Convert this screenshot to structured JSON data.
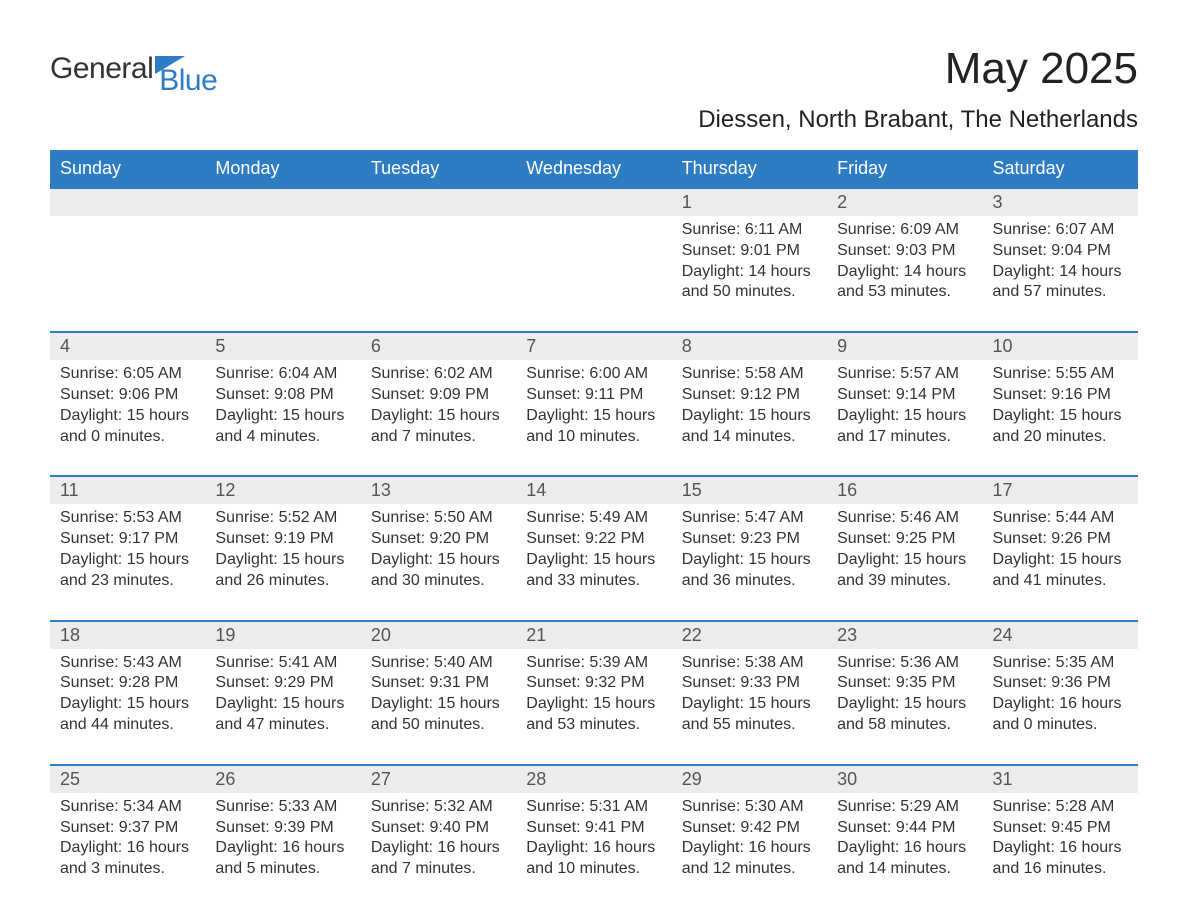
{
  "colors": {
    "header_bg": "#2e7cc2",
    "header_text": "#ffffff",
    "daynum_bg": "#ececec",
    "daynum_text": "#555555",
    "body_text": "#333333",
    "row_divider": "#2e7cc2",
    "background": "#ffffff"
  },
  "fonts": {
    "title_size_pt": 33,
    "subtitle_size_pt": 18,
    "weekday_size_pt": 14,
    "daynum_size_pt": 14,
    "cell_size_pt": 12
  },
  "logo": {
    "text1": "General",
    "text2": "Blue"
  },
  "title": "May 2025",
  "subtitle": "Diessen, North Brabant, The Netherlands",
  "weekdays": [
    "Sunday",
    "Monday",
    "Tuesday",
    "Wednesday",
    "Thursday",
    "Friday",
    "Saturday"
  ],
  "weeks": [
    [
      null,
      null,
      null,
      null,
      {
        "n": "1",
        "sr": "Sunrise: 6:11 AM",
        "ss": "Sunset: 9:01 PM",
        "d1": "Daylight: 14 hours",
        "d2": "and 50 minutes."
      },
      {
        "n": "2",
        "sr": "Sunrise: 6:09 AM",
        "ss": "Sunset: 9:03 PM",
        "d1": "Daylight: 14 hours",
        "d2": "and 53 minutes."
      },
      {
        "n": "3",
        "sr": "Sunrise: 6:07 AM",
        "ss": "Sunset: 9:04 PM",
        "d1": "Daylight: 14 hours",
        "d2": "and 57 minutes."
      }
    ],
    [
      {
        "n": "4",
        "sr": "Sunrise: 6:05 AM",
        "ss": "Sunset: 9:06 PM",
        "d1": "Daylight: 15 hours",
        "d2": "and 0 minutes."
      },
      {
        "n": "5",
        "sr": "Sunrise: 6:04 AM",
        "ss": "Sunset: 9:08 PM",
        "d1": "Daylight: 15 hours",
        "d2": "and 4 minutes."
      },
      {
        "n": "6",
        "sr": "Sunrise: 6:02 AM",
        "ss": "Sunset: 9:09 PM",
        "d1": "Daylight: 15 hours",
        "d2": "and 7 minutes."
      },
      {
        "n": "7",
        "sr": "Sunrise: 6:00 AM",
        "ss": "Sunset: 9:11 PM",
        "d1": "Daylight: 15 hours",
        "d2": "and 10 minutes."
      },
      {
        "n": "8",
        "sr": "Sunrise: 5:58 AM",
        "ss": "Sunset: 9:12 PM",
        "d1": "Daylight: 15 hours",
        "d2": "and 14 minutes."
      },
      {
        "n": "9",
        "sr": "Sunrise: 5:57 AM",
        "ss": "Sunset: 9:14 PM",
        "d1": "Daylight: 15 hours",
        "d2": "and 17 minutes."
      },
      {
        "n": "10",
        "sr": "Sunrise: 5:55 AM",
        "ss": "Sunset: 9:16 PM",
        "d1": "Daylight: 15 hours",
        "d2": "and 20 minutes."
      }
    ],
    [
      {
        "n": "11",
        "sr": "Sunrise: 5:53 AM",
        "ss": "Sunset: 9:17 PM",
        "d1": "Daylight: 15 hours",
        "d2": "and 23 minutes."
      },
      {
        "n": "12",
        "sr": "Sunrise: 5:52 AM",
        "ss": "Sunset: 9:19 PM",
        "d1": "Daylight: 15 hours",
        "d2": "and 26 minutes."
      },
      {
        "n": "13",
        "sr": "Sunrise: 5:50 AM",
        "ss": "Sunset: 9:20 PM",
        "d1": "Daylight: 15 hours",
        "d2": "and 30 minutes."
      },
      {
        "n": "14",
        "sr": "Sunrise: 5:49 AM",
        "ss": "Sunset: 9:22 PM",
        "d1": "Daylight: 15 hours",
        "d2": "and 33 minutes."
      },
      {
        "n": "15",
        "sr": "Sunrise: 5:47 AM",
        "ss": "Sunset: 9:23 PM",
        "d1": "Daylight: 15 hours",
        "d2": "and 36 minutes."
      },
      {
        "n": "16",
        "sr": "Sunrise: 5:46 AM",
        "ss": "Sunset: 9:25 PM",
        "d1": "Daylight: 15 hours",
        "d2": "and 39 minutes."
      },
      {
        "n": "17",
        "sr": "Sunrise: 5:44 AM",
        "ss": "Sunset: 9:26 PM",
        "d1": "Daylight: 15 hours",
        "d2": "and 41 minutes."
      }
    ],
    [
      {
        "n": "18",
        "sr": "Sunrise: 5:43 AM",
        "ss": "Sunset: 9:28 PM",
        "d1": "Daylight: 15 hours",
        "d2": "and 44 minutes."
      },
      {
        "n": "19",
        "sr": "Sunrise: 5:41 AM",
        "ss": "Sunset: 9:29 PM",
        "d1": "Daylight: 15 hours",
        "d2": "and 47 minutes."
      },
      {
        "n": "20",
        "sr": "Sunrise: 5:40 AM",
        "ss": "Sunset: 9:31 PM",
        "d1": "Daylight: 15 hours",
        "d2": "and 50 minutes."
      },
      {
        "n": "21",
        "sr": "Sunrise: 5:39 AM",
        "ss": "Sunset: 9:32 PM",
        "d1": "Daylight: 15 hours",
        "d2": "and 53 minutes."
      },
      {
        "n": "22",
        "sr": "Sunrise: 5:38 AM",
        "ss": "Sunset: 9:33 PM",
        "d1": "Daylight: 15 hours",
        "d2": "and 55 minutes."
      },
      {
        "n": "23",
        "sr": "Sunrise: 5:36 AM",
        "ss": "Sunset: 9:35 PM",
        "d1": "Daylight: 15 hours",
        "d2": "and 58 minutes."
      },
      {
        "n": "24",
        "sr": "Sunrise: 5:35 AM",
        "ss": "Sunset: 9:36 PM",
        "d1": "Daylight: 16 hours",
        "d2": "and 0 minutes."
      }
    ],
    [
      {
        "n": "25",
        "sr": "Sunrise: 5:34 AM",
        "ss": "Sunset: 9:37 PM",
        "d1": "Daylight: 16 hours",
        "d2": "and 3 minutes."
      },
      {
        "n": "26",
        "sr": "Sunrise: 5:33 AM",
        "ss": "Sunset: 9:39 PM",
        "d1": "Daylight: 16 hours",
        "d2": "and 5 minutes."
      },
      {
        "n": "27",
        "sr": "Sunrise: 5:32 AM",
        "ss": "Sunset: 9:40 PM",
        "d1": "Daylight: 16 hours",
        "d2": "and 7 minutes."
      },
      {
        "n": "28",
        "sr": "Sunrise: 5:31 AM",
        "ss": "Sunset: 9:41 PM",
        "d1": "Daylight: 16 hours",
        "d2": "and 10 minutes."
      },
      {
        "n": "29",
        "sr": "Sunrise: 5:30 AM",
        "ss": "Sunset: 9:42 PM",
        "d1": "Daylight: 16 hours",
        "d2": "and 12 minutes."
      },
      {
        "n": "30",
        "sr": "Sunrise: 5:29 AM",
        "ss": "Sunset: 9:44 PM",
        "d1": "Daylight: 16 hours",
        "d2": "and 14 minutes."
      },
      {
        "n": "31",
        "sr": "Sunrise: 5:28 AM",
        "ss": "Sunset: 9:45 PM",
        "d1": "Daylight: 16 hours",
        "d2": "and 16 minutes."
      }
    ]
  ]
}
